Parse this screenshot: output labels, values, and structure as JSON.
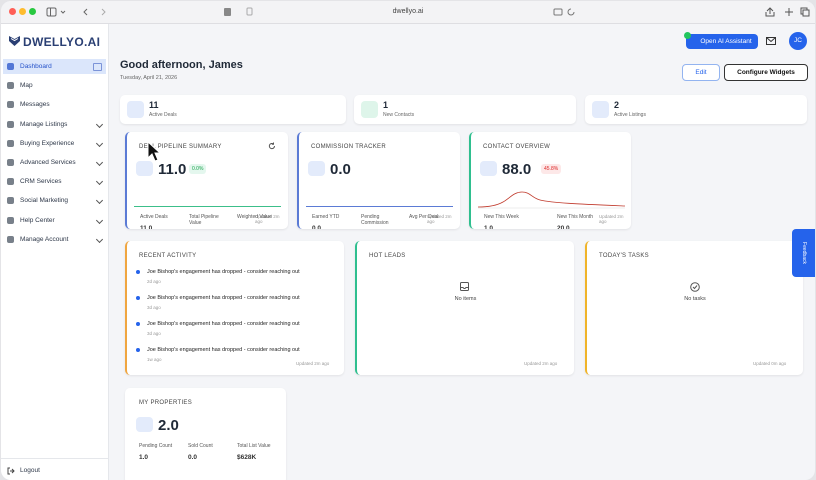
{
  "browser": {
    "url": "dwellyo.ai"
  },
  "sidebar": {
    "logo": "DWELLYO.AI",
    "nav": [
      {
        "label": "Dashboard",
        "active": true,
        "expandable": false
      },
      {
        "label": "Map",
        "active": false,
        "expandable": false
      },
      {
        "label": "Messages",
        "active": false,
        "expandable": false
      },
      {
        "label": "Manage Listings",
        "active": false,
        "expandable": true
      },
      {
        "label": "Buying Experience",
        "active": false,
        "expandable": true
      },
      {
        "label": "Advanced Services",
        "active": false,
        "expandable": true
      },
      {
        "label": "CRM Services",
        "active": false,
        "expandable": true
      },
      {
        "label": "Social Marketing",
        "active": false,
        "expandable": true
      },
      {
        "label": "Help Center",
        "active": false,
        "expandable": true
      },
      {
        "label": "Manage Account",
        "active": false,
        "expandable": true
      }
    ],
    "logout": "Logout"
  },
  "header": {
    "greeting": "Good afternoon, James",
    "date": "Tuesday, April 21, 2026",
    "ai_button": "Open AI Assistant",
    "avatar": "JC",
    "edit": "Edit",
    "configure": "Configure Widgets"
  },
  "stats": [
    {
      "value": "11",
      "label": "Active Deals"
    },
    {
      "value": "1",
      "label": "New Contacts"
    },
    {
      "value": "2",
      "label": "Active Listings"
    }
  ],
  "deal_pipeline": {
    "title": "DEAL PIPELINE SUMMARY",
    "value": "11.0",
    "change": "0.0%",
    "metrics": [
      {
        "label": "Active Deals",
        "value": "11.0"
      },
      {
        "label": "Total Pipeline Value",
        "value": ""
      },
      {
        "label": "Weighted Value",
        "value": ""
      }
    ],
    "updated": "Updated 2m ago"
  },
  "commission": {
    "title": "COMMISSION TRACKER",
    "value": "0.0",
    "metrics": [
      {
        "label": "Earned YTD",
        "value": "0.0"
      },
      {
        "label": "Pending Commission",
        "value": ""
      },
      {
        "label": "Avg Per Deal",
        "value": ""
      }
    ],
    "updated": "Updated 2m ago"
  },
  "contacts": {
    "title": "CONTACT OVERVIEW",
    "value": "88.0",
    "change": "45.8%",
    "metrics": [
      {
        "label": "New This Week",
        "value": "1.0"
      },
      {
        "label": "New This Month",
        "value": "20.0"
      }
    ],
    "updated": "Updated 2m ago"
  },
  "recent_activity": {
    "title": "RECENT ACTIVITY",
    "items": [
      {
        "text": "Joe Bishop's engagement has dropped - consider reaching out",
        "time": "2d ago"
      },
      {
        "text": "Joe Bishop's engagement has dropped - consider reaching out",
        "time": "3d ago"
      },
      {
        "text": "Joe Bishop's engagement has dropped - consider reaching out",
        "time": "3d ago"
      },
      {
        "text": "Joe Bishop's engagement has dropped - consider reaching out",
        "time": "1w ago"
      }
    ],
    "updated": "Updated 2m ago"
  },
  "hot_leads": {
    "title": "HOT LEADS",
    "empty": "No items",
    "updated": "Updated 2m ago"
  },
  "tasks": {
    "title": "TODAY'S TASKS",
    "empty": "No tasks",
    "updated": "Updated 0m ago"
  },
  "properties": {
    "title": "MY PROPERTIES",
    "value": "2.0",
    "metrics": [
      {
        "label": "Pending Count",
        "value": "1.0"
      },
      {
        "label": "Sold Count",
        "value": "0.0"
      },
      {
        "label": "Total List Value",
        "value": "$628K"
      }
    ]
  },
  "feedback": "Feedback"
}
